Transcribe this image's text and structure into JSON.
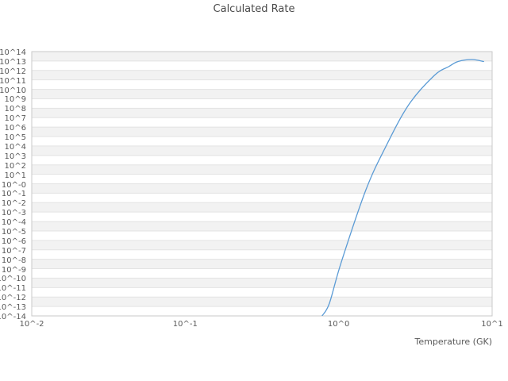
{
  "chart_data": {
    "type": "line",
    "title": "Calculated Rate",
    "xlabel": "Temperature (GK)",
    "ylabel": "",
    "x_scale": "log",
    "y_scale": "log",
    "x_log_range": [
      -2,
      1
    ],
    "y_log_range": [
      -14,
      14
    ],
    "x_tick_labels": [
      "10^-2",
      "10^-1",
      "10^0",
      "10^1"
    ],
    "y_tick_labels": [
      "10^14",
      "10^13",
      "10^12",
      "10^11",
      "10^10",
      "10^9",
      "10^8",
      "10^7",
      "10^6",
      "10^5",
      "10^4",
      "10^3",
      "10^2",
      "10^1",
      "10^-0",
      "10^-1",
      "10^-2",
      "10^-3",
      "10^-4",
      "10^-5",
      "10^-6",
      "10^-7",
      "10^-8",
      "10^-9",
      "10^-10",
      "10^-11",
      "10^-12",
      "10^-13",
      "10^-14"
    ],
    "legend": "none",
    "grid": "horizontal decade gridlines with alternating band fill",
    "colors": {
      "line": "#5b9bd5",
      "band_gray": "#f2f2f2",
      "band_white": "#ffffff",
      "gridline": "#e3e3e3",
      "plot_border": "#c9c9c9",
      "title_text": "#4a4a4a",
      "tick_text": "#595959"
    },
    "series": [
      {
        "name": "calculated-rate",
        "points": [
          {
            "T": 0.78,
            "log10_rate": -14.0
          },
          {
            "T": 0.87,
            "log10_rate": -12.66
          },
          {
            "T": 1.04,
            "log10_rate": -8.3
          },
          {
            "T": 1.5,
            "log10_rate": -0.71
          },
          {
            "T": 2.0,
            "log10_rate": 3.74
          },
          {
            "T": 2.86,
            "log10_rate": 8.37
          },
          {
            "T": 4.2,
            "log10_rate": 11.48
          },
          {
            "T": 5.2,
            "log10_rate": 12.4
          },
          {
            "T": 6.0,
            "log10_rate": 12.95
          },
          {
            "T": 7.4,
            "log10_rate": 13.16
          },
          {
            "T": 8.8,
            "log10_rate": 12.95
          }
        ]
      }
    ]
  }
}
